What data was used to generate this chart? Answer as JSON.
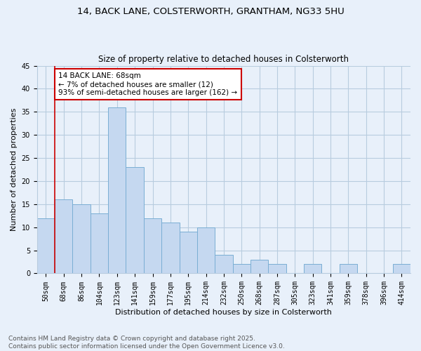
{
  "title1": "14, BACK LANE, COLSTERWORTH, GRANTHAM, NG33 5HU",
  "title2": "Size of property relative to detached houses in Colsterworth",
  "xlabel": "Distribution of detached houses by size in Colsterworth",
  "ylabel": "Number of detached properties",
  "categories": [
    "50sqm",
    "68sqm",
    "86sqm",
    "104sqm",
    "123sqm",
    "141sqm",
    "159sqm",
    "177sqm",
    "195sqm",
    "214sqm",
    "232sqm",
    "250sqm",
    "268sqm",
    "287sqm",
    "305sqm",
    "323sqm",
    "341sqm",
    "359sqm",
    "378sqm",
    "396sqm",
    "414sqm"
  ],
  "values": [
    12,
    16,
    15,
    13,
    36,
    23,
    12,
    11,
    9,
    10,
    4,
    2,
    3,
    2,
    0,
    2,
    0,
    2,
    0,
    0,
    2
  ],
  "bar_color": "#c5d8f0",
  "bar_edge_color": "#7aaed4",
  "bg_color": "#e8f0fa",
  "grid_color": "#b8ccdf",
  "vline_x_index": 1,
  "vline_color": "#cc0000",
  "annotation_line1": "14 BACK LANE: 68sqm",
  "annotation_line2": "← 7% of detached houses are smaller (12)",
  "annotation_line3": "93% of semi-detached houses are larger (162) →",
  "annotation_box_color": "#ffffff",
  "annotation_box_edge": "#cc0000",
  "ylim": [
    0,
    45
  ],
  "yticks": [
    0,
    5,
    10,
    15,
    20,
    25,
    30,
    35,
    40,
    45
  ],
  "footer": "Contains HM Land Registry data © Crown copyright and database right 2025.\nContains public sector information licensed under the Open Government Licence v3.0.",
  "title_fontsize": 9.5,
  "subtitle_fontsize": 8.5,
  "axis_label_fontsize": 8,
  "tick_fontsize": 7,
  "annotation_fontsize": 7.5,
  "footer_fontsize": 6.5
}
